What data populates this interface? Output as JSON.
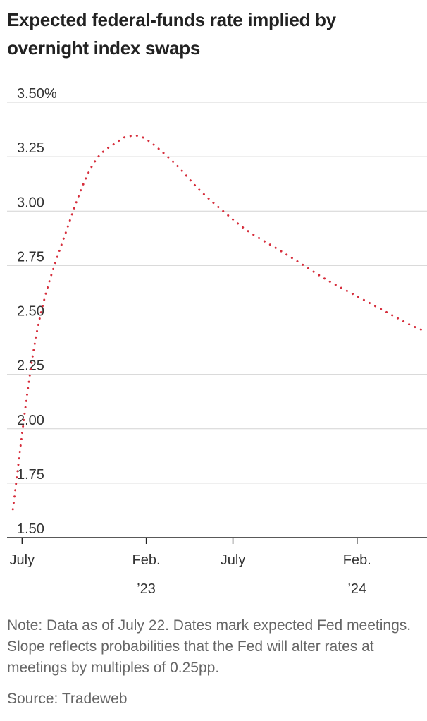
{
  "title": "Expected federal-funds rate implied by overnight index swaps",
  "note": "Note: Data as of July 22. Dates mark expected Fed meetings. Slope reflects probabilities that the Fed will alter rates at meetings by multiples of 0.25pp.",
  "source": "Source: Tradeweb",
  "colors": {
    "series": "#d62e3c",
    "grid": "#d4d4d4",
    "axis": "#222222"
  },
  "chart_data": {
    "type": "line",
    "line_style": "dotted",
    "title": "Expected federal-funds rate implied by overnight index swaps",
    "xlabel": "",
    "ylabel": "",
    "ylim": [
      1.5,
      3.5
    ],
    "xlim": [
      "2022-06-05",
      "2024-06-01"
    ],
    "y_ticks": [
      {
        "value": 3.5,
        "label": "3.50%"
      },
      {
        "value": 3.25,
        "label": "3.25"
      },
      {
        "value": 3.0,
        "label": "3.00"
      },
      {
        "value": 2.75,
        "label": "2.75"
      },
      {
        "value": 2.5,
        "label": "2.50"
      },
      {
        "value": 2.25,
        "label": "2.25"
      },
      {
        "value": 2.0,
        "label": "2.00"
      },
      {
        "value": 1.75,
        "label": "1.75"
      },
      {
        "value": 1.5,
        "label": "1.50"
      }
    ],
    "x_ticks": [
      {
        "date": "2022-07-01",
        "label": "July",
        "year": ""
      },
      {
        "date": "2023-02-01",
        "label": "Feb.",
        "year": "’23"
      },
      {
        "date": "2023-07-01",
        "label": "July",
        "year": ""
      },
      {
        "date": "2024-02-01",
        "label": "Feb.",
        "year": "’24"
      }
    ],
    "grid": true,
    "legend": "none",
    "series": [
      {
        "name": "",
        "x": [
          "2022-06-15",
          "2022-07-27",
          "2022-09-21",
          "2022-11-02",
          "2022-12-14",
          "2023-01-05",
          "2023-02-01",
          "2023-03-22",
          "2023-05-03",
          "2023-06-14",
          "2023-07-26",
          "2023-09-20",
          "2023-11-01",
          "2023-12-13",
          "2024-01-31",
          "2024-03-20",
          "2024-05-01",
          "2024-05-27"
        ],
        "y": [
          1.63,
          2.45,
          2.95,
          3.22,
          3.32,
          3.345,
          3.33,
          3.22,
          3.1,
          3.0,
          2.91,
          2.82,
          2.75,
          2.68,
          2.61,
          2.54,
          2.48,
          2.45
        ]
      }
    ]
  }
}
